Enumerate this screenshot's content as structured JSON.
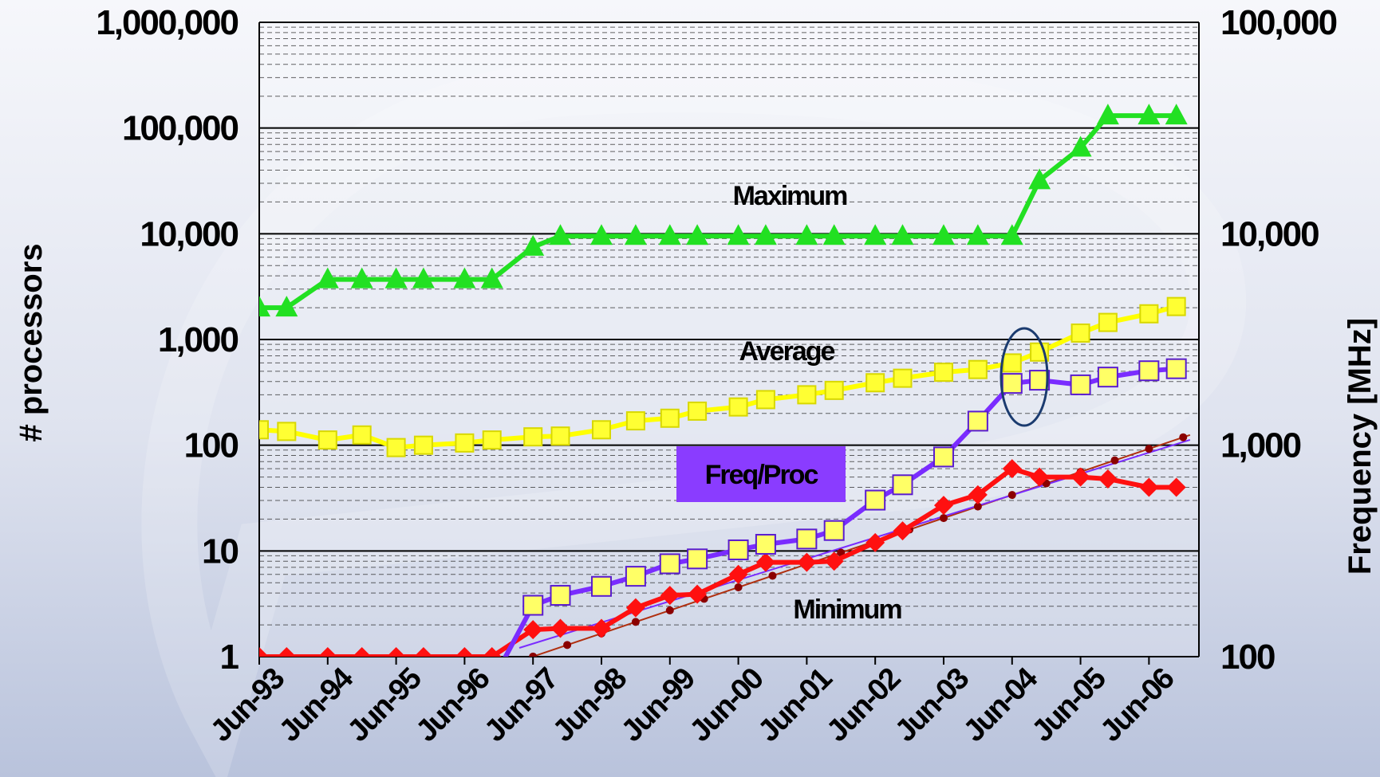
{
  "chart_data": {
    "type": "line",
    "xlabel": "",
    "ylabel": "# processors",
    "ylabel_right": "Frequency [MHz]",
    "y_scale": "log",
    "ylim": [
      1,
      1000000
    ],
    "yticks": [
      "1",
      "10",
      "100",
      "1,000",
      "10,000",
      "100,000",
      "1,000,000"
    ],
    "y2_scale": "log",
    "y2lim": [
      100,
      100000
    ],
    "y2ticks": [
      "100",
      "1,000",
      "10,000",
      "100,000"
    ],
    "grid": true,
    "categories": [
      "Jun-93",
      "Jun-94",
      "Jun-95",
      "Jun-96",
      "Jun-97",
      "Jun-98",
      "Jun-99",
      "Jun-00",
      "Jun-01",
      "Jun-02",
      "Jun-03",
      "Jun-04",
      "Jun-05",
      "Jun-06"
    ],
    "x": [
      1993.0,
      1993.4,
      1994.0,
      1994.5,
      1995.0,
      1995.4,
      1996.0,
      1996.4,
      1997.0,
      1997.4,
      1998.0,
      1998.5,
      1999.0,
      1999.4,
      2000.0,
      2000.4,
      2001.0,
      2001.4,
      2002.0,
      2002.4,
      2003.0,
      2003.5,
      2004.0,
      2004.4,
      2005.0,
      2005.4,
      2006.0,
      2006.4
    ],
    "series": [
      {
        "name": "Maximum",
        "color": "#22e022",
        "marker": "triangle",
        "axis": "left",
        "values": [
          2000,
          2000,
          3700,
          3700,
          3700,
          3700,
          3700,
          3700,
          7500,
          9500,
          9500,
          9500,
          9500,
          9500,
          9500,
          9500,
          9500,
          9500,
          9500,
          9500,
          9500,
          9500,
          9500,
          32000,
          65000,
          131000,
          131000,
          131000
        ]
      },
      {
        "name": "Average",
        "color": "#ffff00",
        "marker": "square",
        "axis": "left",
        "values": [
          140,
          135,
          112,
          125,
          95,
          100,
          105,
          112,
          120,
          122,
          140,
          170,
          180,
          210,
          230,
          270,
          300,
          330,
          390,
          430,
          490,
          520,
          600,
          760,
          1150,
          1450,
          1750,
          2050
        ]
      },
      {
        "name": "Minimum",
        "color": "#ff1010",
        "marker": "diamond",
        "axis": "left",
        "values": [
          1,
          1,
          1,
          1,
          1,
          1,
          1,
          1,
          1.8,
          1.85,
          1.85,
          2.9,
          3.8,
          3.9,
          6,
          7.8,
          7.8,
          8,
          12,
          15.5,
          27,
          34,
          60,
          50,
          50,
          48,
          40,
          40
        ]
      },
      {
        "name": "Freq/Proc",
        "color": "#7a2cff",
        "marker": "square",
        "axis": "right",
        "values": [
          null,
          null,
          null,
          null,
          null,
          null,
          null,
          null,
          175,
          195,
          215,
          240,
          275,
          290,
          320,
          340,
          360,
          395,
          550,
          650,
          880,
          1300,
          1960,
          2030,
          1930,
          2100,
          2250,
          2300
        ]
      }
    ],
    "trendlines": [
      {
        "color": "#b03010",
        "from": [
          1996.55,
          0.8
        ],
        "to": [
          2006.6,
          125
        ]
      },
      {
        "color": "#7a2cff",
        "from": [
          1996.8,
          110
        ],
        "to": [
          2006.6,
          1060
        ]
      }
    ],
    "annotations": [
      "Maximum",
      "Average",
      "Minimum",
      "Freq/Proc"
    ],
    "legend": "inline labels next to series"
  }
}
